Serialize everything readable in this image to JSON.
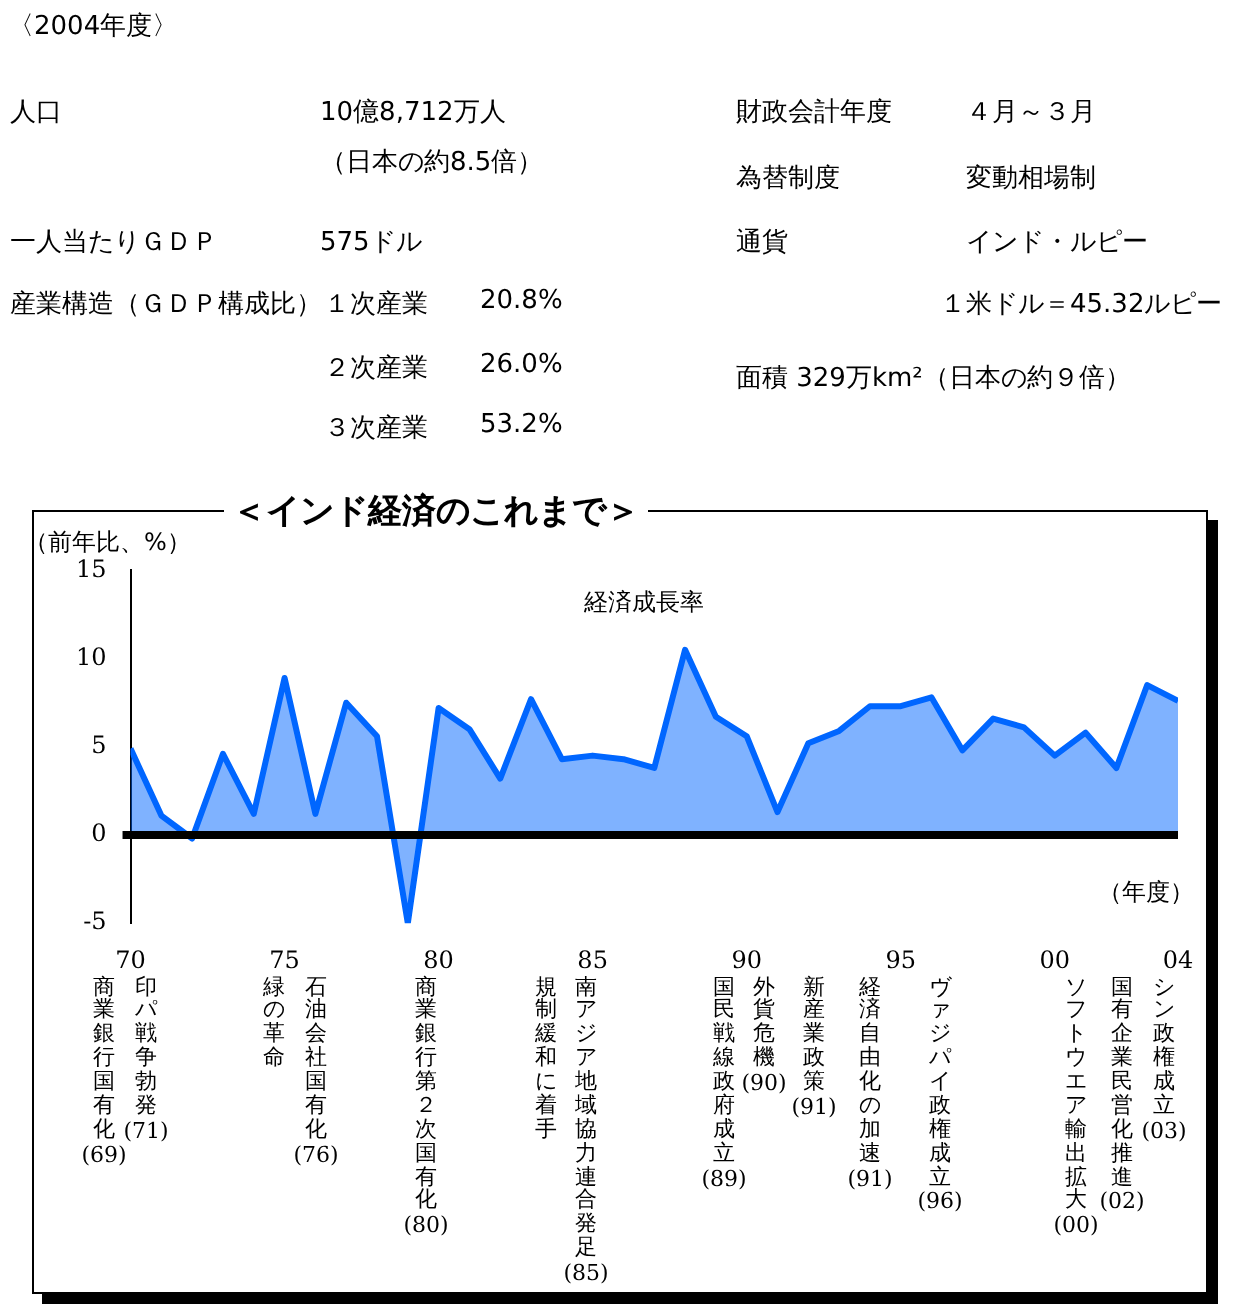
{
  "chart_data": [
    {
      "type": "other",
      "title": "〈2004年度〉",
      "annotations": [
        "人口",
        "10億8,712万人",
        "（日本の約8.5倍）",
        "一人当たりＧＤＰ",
        "575ドル",
        "産業構造（ＧＤＰ構成比）",
        "１次産業",
        "20.8%",
        "２次産業",
        "26.0%",
        "３次産業",
        "53.2%",
        "財政会計年度",
        "４月～３月",
        "為替制度",
        "変動相場制",
        "通貨",
        "インド・ルピー",
        "１米ドル＝45.32ルピー",
        "面積 329万km²（日本の約９倍）"
      ]
    },
    {
      "type": "area",
      "title": "＜インド経済のこれまで＞",
      "xlabel": "（年度）",
      "ylabel": "（前年比、%）",
      "x": [
        1970,
        1971,
        1972,
        1973,
        1974,
        1975,
        1976,
        1977,
        1978,
        1979,
        1980,
        1981,
        1982,
        1983,
        1984,
        1985,
        1986,
        1987,
        1988,
        1989,
        1990,
        1991,
        1992,
        1993,
        1994,
        1995,
        1996,
        1997,
        1998,
        1999,
        2000,
        2001,
        2002,
        2003,
        2004
      ],
      "series": [
        {
          "name": "経済成長率",
          "color": "#0066ff",
          "values": [
            4.9,
            1.1,
            -0.2,
            4.6,
            1.2,
            8.9,
            1.2,
            7.5,
            5.6,
            -5.0,
            7.2,
            6.0,
            3.2,
            7.7,
            4.3,
            4.5,
            4.3,
            3.8,
            10.5,
            6.7,
            5.6,
            1.3,
            5.2,
            5.9,
            7.3,
            7.3,
            7.8,
            4.8,
            6.6,
            6.1,
            4.5,
            5.8,
            3.8,
            8.5,
            7.6
          ]
        }
      ],
      "xlim": [
        1970,
        2004
      ],
      "xticks": [
        {
          "value": 1970,
          "label": "70"
        },
        {
          "value": 1975,
          "label": "75"
        },
        {
          "value": 1980,
          "label": "80"
        },
        {
          "value": 1985,
          "label": "85"
        },
        {
          "value": 1990,
          "label": "90"
        },
        {
          "value": 1995,
          "label": "95"
        },
        {
          "value": 2000,
          "label": "00"
        },
        {
          "value": 2004,
          "label": "04"
        }
      ],
      "ylim": [
        -5,
        15
      ],
      "yticks": [
        -5,
        0,
        5,
        10,
        15
      ],
      "grid": false,
      "ref_lines": [
        {
          "axis": "y",
          "value": 0,
          "color": "#000000"
        }
      ],
      "legend": false,
      "marker": "none",
      "line_style": "solid",
      "annotations": [
        "商業銀行国有化(69)",
        "印パ戦争勃発(71)",
        "緑の革命",
        "石油会社国有化(76)",
        "商業銀行第２次国有化(80)",
        "規制緩和に着手",
        "南アジア地域協力連合発足(85)",
        "国民戦線政府成立(89)",
        "外貨危機(90)",
        "新産業政策(91)",
        "経済自由化の加速(91)",
        "ヴァジパイ政権成立(96)",
        "ソフトウエア輸出拡大(00)",
        "国有企業民営化推進(02)",
        "シン政権成立(03)"
      ]
    }
  ]
}
